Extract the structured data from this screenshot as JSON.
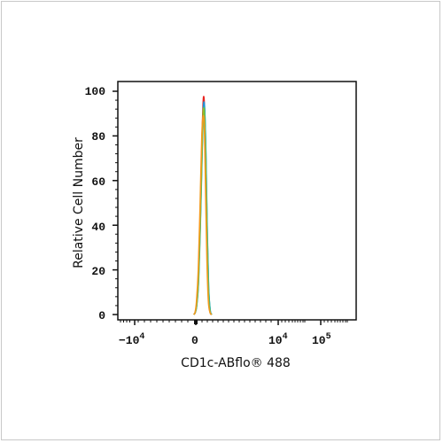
{
  "chart_data": {
    "type": "line",
    "title": "",
    "xlabel": "CD1c-ABflo® 488",
    "ylabel": "Relative Cell Number",
    "y_ticks": [
      "0",
      "20",
      "40",
      "60",
      "80",
      "100"
    ],
    "x_ticks": [
      {
        "base": "−10",
        "exp": "4"
      },
      {
        "base": "0",
        "exp": ""
      },
      {
        "base": "10",
        "exp": "4"
      },
      {
        "base": "10",
        "exp": "5"
      }
    ],
    "ylim": [
      0,
      100
    ],
    "grid": false,
    "series": [
      {
        "color": "#e8231f",
        "x": [
          -0.22,
          -0.06,
          0.1,
          0.3,
          0.5,
          0.7,
          0.86,
          1.0,
          1.14,
          1.28,
          1.44,
          1.62,
          1.8
        ],
        "y": [
          0,
          1,
          5,
          18,
          45,
          78,
          97,
          90,
          60,
          30,
          8,
          1,
          0
        ]
      },
      {
        "color": "#1f8fd6",
        "x": [
          -0.22,
          -0.06,
          0.1,
          0.3,
          0.5,
          0.7,
          0.86,
          1.0,
          1.14,
          1.28,
          1.44,
          1.62,
          1.8
        ],
        "y": [
          0,
          1,
          4,
          15,
          40,
          72,
          93,
          92,
          70,
          38,
          12,
          2,
          0
        ]
      },
      {
        "color": "#2bb5a2",
        "x": [
          -0.22,
          -0.06,
          0.1,
          0.3,
          0.5,
          0.7,
          0.86,
          1.0,
          1.14,
          1.28,
          1.44,
          1.62,
          1.8
        ],
        "y": [
          0,
          1,
          4,
          14,
          38,
          70,
          90,
          91,
          72,
          40,
          13,
          2,
          0
        ]
      },
      {
        "color": "#8fbf2a",
        "x": [
          -0.22,
          -0.06,
          0.1,
          0.3,
          0.5,
          0.7,
          0.86,
          1.0,
          1.14,
          1.28,
          1.44,
          1.62,
          1.8
        ],
        "y": [
          0,
          1,
          5,
          17,
          44,
          76,
          92,
          85,
          58,
          28,
          7,
          1,
          0
        ]
      },
      {
        "color": "#f29a1e",
        "x": [
          -0.24,
          -0.08,
          0.08,
          0.28,
          0.48,
          0.68,
          0.84,
          0.98,
          1.12,
          1.26,
          1.42,
          1.6,
          1.78
        ],
        "y": [
          0,
          1,
          6,
          20,
          48,
          80,
          89,
          82,
          52,
          24,
          6,
          1,
          0
        ]
      }
    ]
  }
}
